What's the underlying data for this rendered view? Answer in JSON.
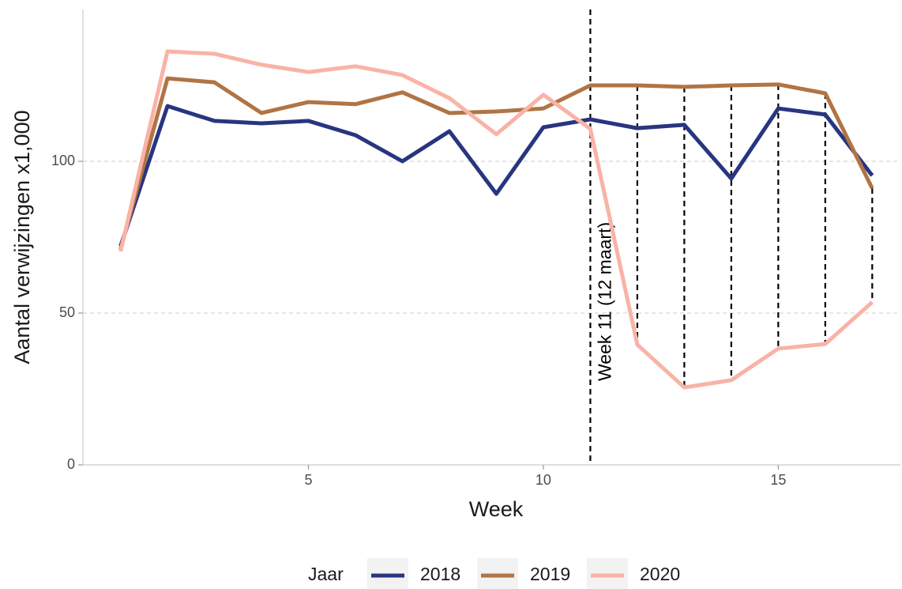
{
  "chart_data": {
    "type": "line",
    "x_label": "Week",
    "y_label": "Aantal verwijzingen x1,000",
    "x": [
      1,
      2,
      3,
      4,
      5,
      6,
      7,
      8,
      9,
      10,
      11,
      12,
      13,
      14,
      15,
      16,
      17
    ],
    "series": [
      {
        "name": "2018",
        "color": "#283580",
        "values": [
          72,
          118.2,
          113.3,
          112.5,
          113.3,
          108.6,
          100,
          109.9,
          89.3,
          111.2,
          113.8,
          110.9,
          112,
          94.3,
          117.4,
          115.4,
          95.3
        ]
      },
      {
        "name": "2019",
        "color": "#b07445",
        "values": [
          71,
          127.3,
          126,
          115.9,
          119.5,
          118.8,
          122.7,
          115.9,
          116.4,
          117.4,
          125,
          125,
          124.5,
          125,
          125.3,
          122.4,
          91.1
        ]
      },
      {
        "name": "2020",
        "color": "#f9b3a6",
        "values": [
          70.3,
          136.2,
          135.4,
          131.8,
          129.4,
          131.3,
          128.4,
          120.8,
          108.9,
          121.9,
          110.7,
          39.6,
          25.5,
          27.9,
          38.3,
          39.8,
          53.6
        ]
      }
    ],
    "legend_title": "Jaar",
    "annotation": {
      "x": 11,
      "label": "Week 11 (12 maart)"
    },
    "xlim": [
      0.2,
      17.6
    ],
    "xticks": [
      5,
      10,
      15
    ],
    "ylim": [
      0,
      150
    ],
    "yticks": [
      0,
      50,
      100
    ],
    "grid": true
  }
}
